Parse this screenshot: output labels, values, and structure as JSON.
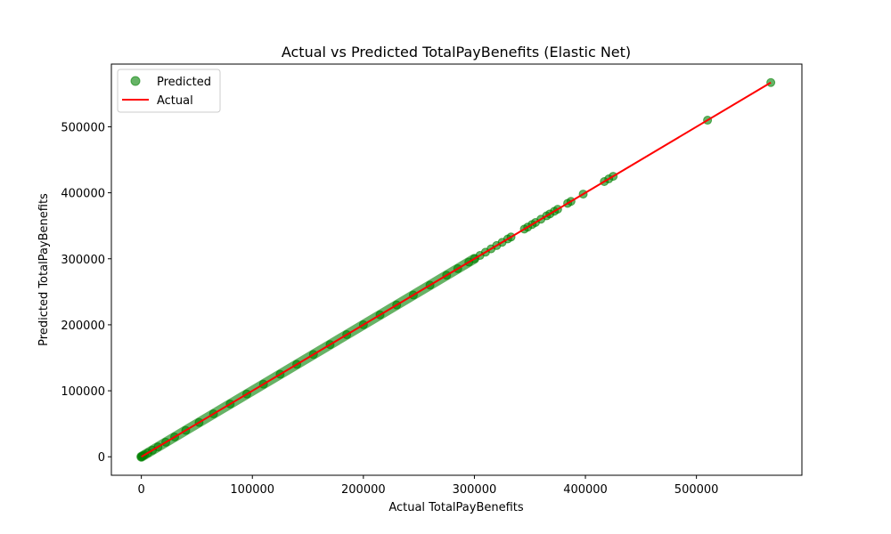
{
  "chart_data": {
    "type": "scatter",
    "title": "Actual vs Predicted TotalPayBenefits (Elastic Net)",
    "xlabel": "Actual TotalPayBenefits",
    "ylabel": "Predicted TotalPayBenefits",
    "xlim": [
      -27000,
      595000
    ],
    "ylim": [
      -28000,
      595000
    ],
    "xticks": [
      0,
      100000,
      200000,
      300000,
      400000,
      500000
    ],
    "yticks": [
      0,
      100000,
      200000,
      300000,
      400000,
      500000
    ],
    "grid": false,
    "legend_position": "upper-left",
    "colors": {
      "predicted": "#008000",
      "actual": "#ff0000"
    },
    "series": [
      {
        "name": "Predicted",
        "kind": "scatter",
        "x": [
          0,
          500,
          1500,
          3000,
          6000,
          10000,
          15000,
          22000,
          30000,
          40000,
          52000,
          65000,
          80000,
          95000,
          110000,
          125000,
          140000,
          155000,
          170000,
          185000,
          200000,
          215000,
          230000,
          245000,
          260000,
          275000,
          285000,
          295000,
          300000,
          305000,
          310000,
          315000,
          320000,
          325000,
          330000,
          333000,
          345000,
          348000,
          352000,
          355000,
          360000,
          365000,
          368000,
          372000,
          375000,
          384000,
          387000,
          398000,
          417000,
          421000,
          425000,
          510000,
          567000
        ],
        "y": [
          0,
          500,
          1500,
          3000,
          6000,
          10000,
          15000,
          22000,
          30000,
          40000,
          52000,
          65000,
          80000,
          95000,
          110000,
          125000,
          140000,
          155000,
          170000,
          185000,
          200000,
          215000,
          230000,
          245000,
          260000,
          275000,
          285000,
          295000,
          300000,
          305000,
          310000,
          315000,
          320000,
          325000,
          330000,
          333000,
          345000,
          348000,
          352000,
          355000,
          360000,
          365000,
          368000,
          372000,
          375000,
          384000,
          387000,
          398000,
          417000,
          421000,
          425000,
          510000,
          567000
        ]
      },
      {
        "name": "Actual",
        "kind": "line",
        "x": [
          0,
          567000
        ],
        "y": [
          0,
          567000
        ]
      }
    ]
  }
}
